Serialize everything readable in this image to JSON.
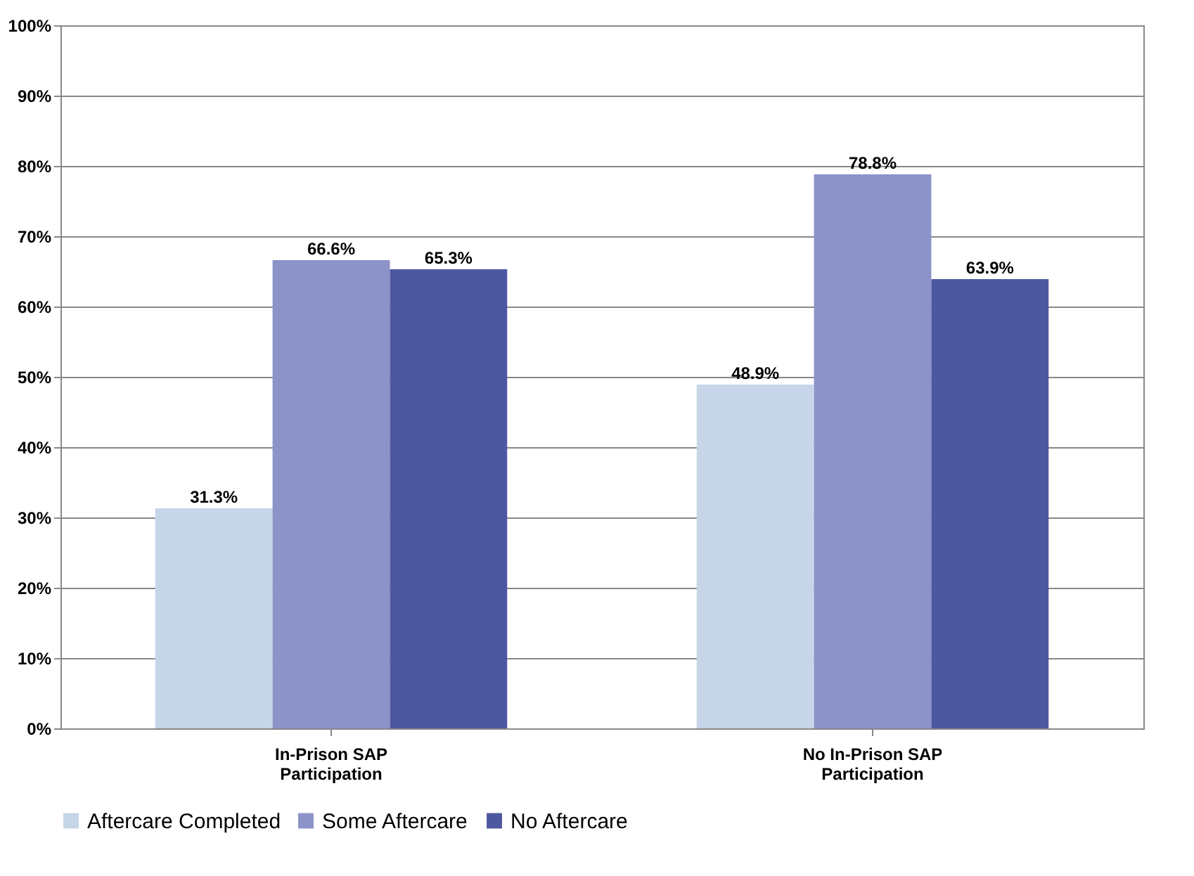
{
  "chart_data": {
    "type": "bar",
    "categories": [
      "In-Prison SAP Participation",
      "No In-Prison SAP Participation"
    ],
    "series": [
      {
        "name": "Aftercare Completed",
        "color": "#c6d5e8",
        "values": [
          31.3,
          48.9
        ],
        "value_labels": [
          "31.3%",
          "48.9%"
        ]
      },
      {
        "name": "Some Aftercare",
        "color": "#8b93c8",
        "values": [
          66.6,
          78.8
        ],
        "value_labels": [
          "66.6%",
          "78.8%"
        ]
      },
      {
        "name": "No Aftercare",
        "color": "#4e58a0",
        "values": [
          65.3,
          63.9
        ],
        "value_labels": [
          "65.3%",
          "63.9%"
        ]
      }
    ],
    "ylim": [
      0,
      100
    ],
    "yticks": [
      {
        "value": 0,
        "label": "0%"
      },
      {
        "value": 10,
        "label": "10%"
      },
      {
        "value": 20,
        "label": "20%"
      },
      {
        "value": 30,
        "label": "30%"
      },
      {
        "value": 40,
        "label": "40%"
      },
      {
        "value": 50,
        "label": "50%"
      },
      {
        "value": 60,
        "label": "60%"
      },
      {
        "value": 70,
        "label": "70%"
      },
      {
        "value": 80,
        "label": "80%"
      },
      {
        "value": 90,
        "label": "90%"
      },
      {
        "value": 100,
        "label": "100%"
      }
    ],
    "grid": "y",
    "legend": "bottom"
  }
}
